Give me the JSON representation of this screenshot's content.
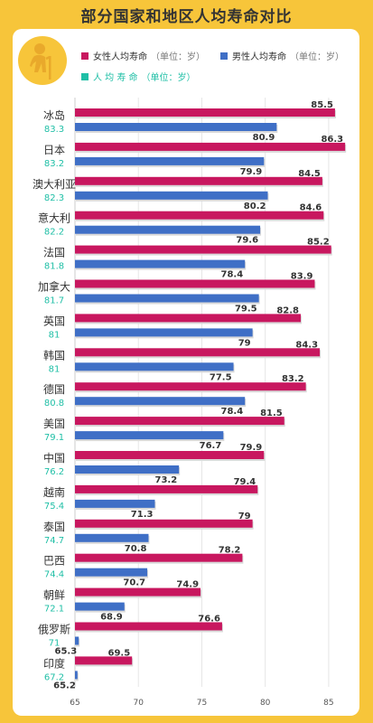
{
  "title": "部分国家和地区人均寿命对比",
  "legend": {
    "female": {
      "label": "女性人均寿命",
      "unit": "（单位：岁）"
    },
    "male": {
      "label": "男性人均寿命",
      "unit": "（单位：岁）"
    },
    "overall": {
      "label": "人 均 寿 命",
      "unit": "（单位：岁）"
    }
  },
  "colors": {
    "female": "#c8175f",
    "male": "#3f6fc6",
    "overall": "#1fbfa6",
    "background": "#f7c53a"
  },
  "icons": {
    "avatar": "elderly-person-icon"
  },
  "chart_data": {
    "type": "bar",
    "orientation": "horizontal",
    "title": "部分国家和地区人均寿命对比",
    "categories": [
      "冰岛",
      "日本",
      "澳大利亚",
      "意大利",
      "法国",
      "加拿大",
      "英国",
      "韩国",
      "德国",
      "美国",
      "中国",
      "越南",
      "泰国",
      "巴西",
      "朝鲜",
      "俄罗斯",
      "印度"
    ],
    "overall": [
      "83.3",
      "83.2",
      "82.3",
      "82.2",
      "81.8",
      "81.7",
      "81",
      "81",
      "80.8",
      "79.1",
      "76.2",
      "75.4",
      "74.7",
      "74.4",
      "72.1",
      "71",
      "67.2"
    ],
    "series": [
      {
        "name": "女性人均寿命",
        "values": [
          85.5,
          86.3,
          84.5,
          84.6,
          85.2,
          83.9,
          82.8,
          84.3,
          83.2,
          81.5,
          79.9,
          79.4,
          79,
          78.2,
          74.9,
          76.6,
          69.5
        ]
      },
      {
        "name": "男性人均寿命",
        "values": [
          80.9,
          79.9,
          80.2,
          79.6,
          78.4,
          79.5,
          79,
          77.5,
          78.4,
          76.7,
          73.2,
          71.3,
          70.8,
          70.7,
          68.9,
          65.3,
          65.2
        ]
      }
    ],
    "xlim": [
      65,
      87
    ],
    "xticks": [
      "65",
      "70",
      "75",
      "80",
      "85"
    ],
    "grid": true,
    "legend_position": "top"
  }
}
